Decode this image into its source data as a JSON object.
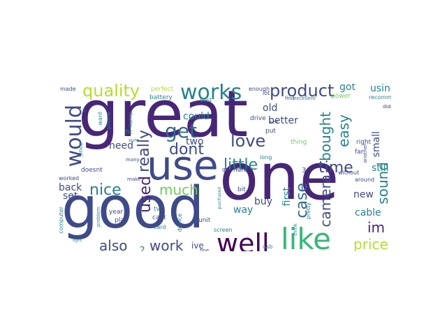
{
  "palette": {
    "dark_purple": "#482677",
    "indigo": "#3e4a89",
    "blue": "#31688e",
    "teal": "#26828e",
    "green": "#35b779",
    "lime": "#6ece58",
    "yellow": "#b5de2b",
    "bright_yellow": "#fde725",
    "deep": "#440154"
  },
  "words": [
    {
      "text": "great",
      "color": "dark_purple"
    },
    {
      "text": "one",
      "color": "dark_purple"
    },
    {
      "text": "good",
      "color": "indigo"
    },
    {
      "text": "use",
      "color": "indigo"
    },
    {
      "text": "like",
      "color": "green"
    },
    {
      "text": "well",
      "color": "deep"
    },
    {
      "text": "works",
      "color": "teal"
    },
    {
      "text": "would",
      "color": "indigo"
    },
    {
      "text": "quality",
      "color": "yellow"
    },
    {
      "text": "product",
      "color": "indigo"
    },
    {
      "text": "get",
      "color": "blue"
    },
    {
      "text": "love",
      "color": "indigo"
    },
    {
      "text": "really",
      "color": "indigo"
    },
    {
      "text": "dont",
      "color": "indigo"
    },
    {
      "text": "used",
      "color": "dark_purple"
    },
    {
      "text": "little",
      "color": "teal"
    },
    {
      "text": "time",
      "color": "indigo"
    },
    {
      "text": "bought",
      "color": "teal"
    },
    {
      "text": "camera",
      "color": "indigo"
    },
    {
      "text": "easy",
      "color": "teal"
    },
    {
      "text": "case",
      "color": "blue"
    },
    {
      "text": "sound",
      "color": "teal"
    },
    {
      "text": "even",
      "color": "indigo"
    },
    {
      "text": "nice",
      "color": "teal"
    },
    {
      "text": "much",
      "color": "lime"
    },
    {
      "text": "also",
      "color": "indigo"
    },
    {
      "text": "work",
      "color": "indigo"
    },
    {
      "text": "price",
      "color": "yellow"
    },
    {
      "text": "im",
      "color": "dark_purple"
    },
    {
      "text": "using",
      "color": "teal"
    },
    {
      "text": "got",
      "color": "teal"
    },
    {
      "text": "could",
      "color": "teal"
    },
    {
      "text": "two",
      "color": "indigo"
    },
    {
      "text": "need",
      "color": "indigo"
    },
    {
      "text": "old",
      "color": "indigo"
    },
    {
      "text": "better",
      "color": "indigo"
    },
    {
      "text": "small",
      "color": "indigo"
    },
    {
      "text": "still",
      "color": "teal"
    },
    {
      "text": "new",
      "color": "indigo"
    },
    {
      "text": "cable",
      "color": "teal"
    },
    {
      "text": "buy",
      "color": "indigo"
    },
    {
      "text": "first",
      "color": "teal"
    },
    {
      "text": "way",
      "color": "teal"
    },
    {
      "text": "back",
      "color": "indigo"
    },
    {
      "text": "set",
      "color": "indigo"
    },
    {
      "text": "ive",
      "color": "indigo"
    },
    {
      "text": "2",
      "color": "blue"
    },
    {
      "text": "3",
      "color": "indigo"
    },
    {
      "text": "perfect",
      "color": "yellow"
    },
    {
      "text": "battery",
      "color": "teal"
    },
    {
      "text": "best",
      "color": "teal"
    },
    {
      "text": "enough",
      "color": "indigo"
    },
    {
      "text": "find",
      "color": "indigo"
    },
    {
      "text": "excellent",
      "color": "teal"
    },
    {
      "text": "power",
      "color": "lime"
    },
    {
      "text": "recommend",
      "color": "teal"
    },
    {
      "text": "didnt",
      "color": "indigo"
    },
    {
      "text": "made",
      "color": "indigo"
    },
    {
      "text": "want",
      "color": "teal"
    },
    {
      "text": "phone",
      "color": "teal"
    },
    {
      "text": "laptop",
      "color": "teal"
    },
    {
      "text": "drive",
      "color": "indigo"
    },
    {
      "text": "put",
      "color": "indigo"
    },
    {
      "text": "thing",
      "color": "lime"
    },
    {
      "text": "right",
      "color": "indigo"
    },
    {
      "text": "far",
      "color": "indigo"
    },
    {
      "text": "another",
      "color": "indigo"
    },
    {
      "text": "fit",
      "color": "teal"
    },
    {
      "text": "sure",
      "color": "teal"
    },
    {
      "text": "since",
      "color": "teal"
    },
    {
      "text": "many",
      "color": "indigo"
    },
    {
      "text": "doesnt",
      "color": "indigo"
    },
    {
      "text": "worked",
      "color": "indigo"
    },
    {
      "text": "make",
      "color": "indigo"
    },
    {
      "text": "long",
      "color": "teal"
    },
    {
      "text": "hard",
      "color": "indigo"
    },
    {
      "text": "without",
      "color": "indigo"
    },
    {
      "text": "around",
      "color": "indigo"
    },
    {
      "text": "computer",
      "color": "teal"
    },
    {
      "text": "problem",
      "color": "teal"
    },
    {
      "text": "year",
      "color": "indigo"
    },
    {
      "text": "play",
      "color": "indigo"
    },
    {
      "text": "tv",
      "color": "teal"
    },
    {
      "text": "cant",
      "color": "indigo"
    },
    {
      "text": "device",
      "color": "teal"
    },
    {
      "text": "unit",
      "color": "indigo"
    },
    {
      "text": "bit",
      "color": "indigo"
    },
    {
      "text": "purchased",
      "color": "teal"
    },
    {
      "text": "lot",
      "color": "indigo"
    },
    {
      "text": "see",
      "color": "indigo"
    },
    {
      "text": "pretty",
      "color": "teal"
    },
    {
      "text": "card",
      "color": "teal"
    },
    {
      "text": "screen",
      "color": "teal"
    },
    {
      "text": "usb",
      "color": "teal"
    },
    {
      "text": "think",
      "color": "teal"
    },
    {
      "text": "light",
      "color": "teal"
    },
    {
      "text": "fine",
      "color": "indigo"
    },
    {
      "text": "go",
      "color": "indigo"
    },
    {
      "text": "s",
      "color": "teal"
    }
  ]
}
